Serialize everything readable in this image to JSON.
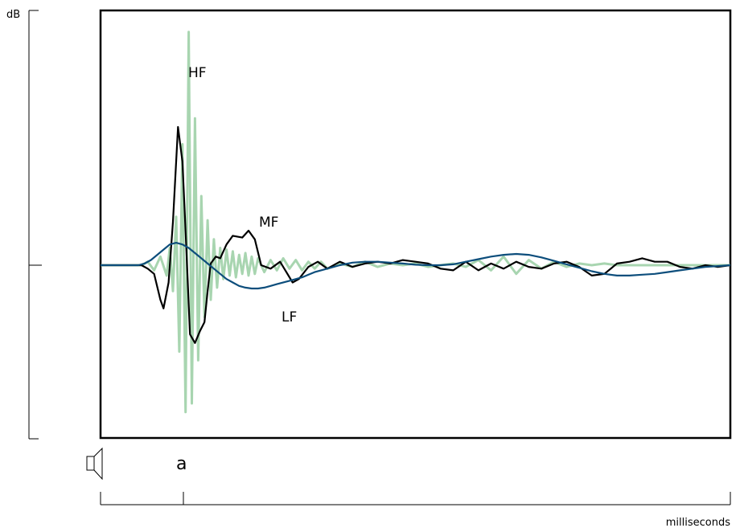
{
  "chart_data": {
    "type": "line",
    "title": "",
    "xlabel": "milliseconds",
    "ylabel": "dB",
    "xlim": [
      0,
      100
    ],
    "ylim": [
      -1,
      1
    ],
    "annotations": {
      "marker": "a"
    },
    "source_icon": "speaker-icon",
    "colors": {
      "HF": "#a8d5b0",
      "MF": "#000000",
      "LF": "#0d4e7c",
      "frame": "#000000"
    },
    "series": [
      {
        "name": "HF",
        "x": [
          0,
          6.5,
          7.5,
          8.5,
          9.5,
          10.5,
          11.0,
          11.5,
          12.0,
          12.5,
          13.0,
          13.5,
          14.0,
          14.5,
          15.0,
          15.5,
          16.0,
          16.5,
          17.0,
          17.5,
          18.0,
          18.5,
          19.0,
          19.5,
          20.0,
          20.5,
          21.0,
          21.5,
          22.0,
          22.5,
          23.0,
          23.5,
          24.0,
          24.5,
          25.0,
          26,
          27,
          28,
          29,
          30,
          31,
          32,
          33,
          34,
          35,
          36,
          38,
          40,
          42,
          44,
          46,
          48,
          50,
          52,
          54,
          56,
          58,
          60,
          62,
          64,
          66,
          68,
          70,
          72,
          74,
          76,
          78,
          80,
          82,
          84,
          86,
          88,
          90,
          92,
          94,
          96,
          98,
          100
        ],
        "values": [
          0,
          0,
          0.02,
          -0.03,
          0.05,
          -0.06,
          0.1,
          -0.15,
          0.28,
          -0.5,
          0.7,
          -0.85,
          1.35,
          -0.8,
          0.85,
          -0.55,
          0.4,
          -0.3,
          0.26,
          -0.2,
          0.15,
          -0.13,
          0.1,
          -0.08,
          0.09,
          -0.06,
          0.08,
          -0.07,
          0.06,
          -0.05,
          0.07,
          -0.06,
          0.05,
          -0.05,
          0.04,
          -0.04,
          0.03,
          -0.03,
          0.04,
          -0.02,
          0.03,
          -0.03,
          0.02,
          -0.02,
          0.02,
          -0.02,
          0.01,
          -0.01,
          0.02,
          -0.01,
          0.01,
          0,
          0.01,
          -0.01,
          0,
          0.01,
          -0.01,
          0.03,
          -0.03,
          0.05,
          -0.05,
          0.03,
          -0.02,
          0.02,
          -0.01,
          0.01,
          0,
          0.01,
          0,
          0,
          0,
          0,
          0,
          0,
          0,
          0,
          0,
          0
        ]
      },
      {
        "name": "MF",
        "x": [
          0,
          6.5,
          7.5,
          8.5,
          9.5,
          10.0,
          10.8,
          11.5,
          12.3,
          13.0,
          13.5,
          14.2,
          15.0,
          15.8,
          16.5,
          17.0,
          17.5,
          18.3,
          19.0,
          20.0,
          21.0,
          22.5,
          23.5,
          24.5,
          25.5,
          27.0,
          28.5,
          29.5,
          30.5,
          31.5,
          33.0,
          34.5,
          36,
          38,
          40,
          42,
          44,
          46,
          48,
          50,
          52,
          54,
          56,
          58,
          60,
          62,
          64,
          66,
          68,
          70,
          72,
          74,
          76,
          78,
          80,
          82,
          84,
          86,
          88,
          90,
          92,
          94,
          96,
          98,
          100
        ],
        "values": [
          0,
          0,
          -0.02,
          -0.05,
          -0.2,
          -0.25,
          -0.1,
          0.25,
          0.8,
          0.6,
          0.2,
          -0.4,
          -0.45,
          -0.38,
          -0.33,
          -0.15,
          0.01,
          0.05,
          0.04,
          0.12,
          0.17,
          0.16,
          0.2,
          0.15,
          0,
          -0.02,
          0.02,
          -0.04,
          -0.1,
          -0.08,
          -0.01,
          0.02,
          -0.02,
          0.02,
          -0.01,
          0.01,
          0.02,
          0.01,
          0.03,
          0.02,
          0.01,
          -0.02,
          -0.03,
          0.02,
          -0.03,
          0.01,
          -0.02,
          0.02,
          -0.01,
          -0.02,
          0.01,
          0.02,
          -0.01,
          -0.06,
          -0.05,
          0.01,
          0.02,
          0.04,
          0.02,
          0.02,
          -0.01,
          -0.02,
          0,
          -0.01,
          0
        ]
      },
      {
        "name": "LF",
        "x": [
          0,
          6,
          7,
          8,
          9,
          10,
          11,
          12,
          13,
          14,
          15,
          16,
          17,
          18,
          19,
          20,
          21,
          22,
          23,
          24,
          25,
          26,
          27,
          28,
          30,
          32,
          34,
          36,
          38,
          40,
          42,
          44,
          46,
          48,
          50,
          52,
          54,
          56,
          58,
          60,
          62,
          64,
          66,
          68,
          70,
          72,
          74,
          76,
          78,
          80,
          82,
          84,
          86,
          88,
          90,
          92,
          94,
          96,
          98,
          100
        ],
        "values": [
          0,
          0,
          0.01,
          0.03,
          0.06,
          0.09,
          0.12,
          0.13,
          0.12,
          0.1,
          0.07,
          0.04,
          0.01,
          -0.02,
          -0.05,
          -0.08,
          -0.1,
          -0.12,
          -0.13,
          -0.135,
          -0.135,
          -0.13,
          -0.12,
          -0.11,
          -0.09,
          -0.07,
          -0.04,
          -0.02,
          0,
          0.015,
          0.02,
          0.02,
          0.015,
          0.01,
          0.003,
          0,
          0,
          0.005,
          0.02,
          0.035,
          0.05,
          0.06,
          0.065,
          0.06,
          0.045,
          0.025,
          0.005,
          -0.015,
          -0.035,
          -0.05,
          -0.06,
          -0.06,
          -0.055,
          -0.05,
          -0.04,
          -0.03,
          -0.02,
          -0.01,
          -0.005,
          0
        ]
      }
    ]
  }
}
